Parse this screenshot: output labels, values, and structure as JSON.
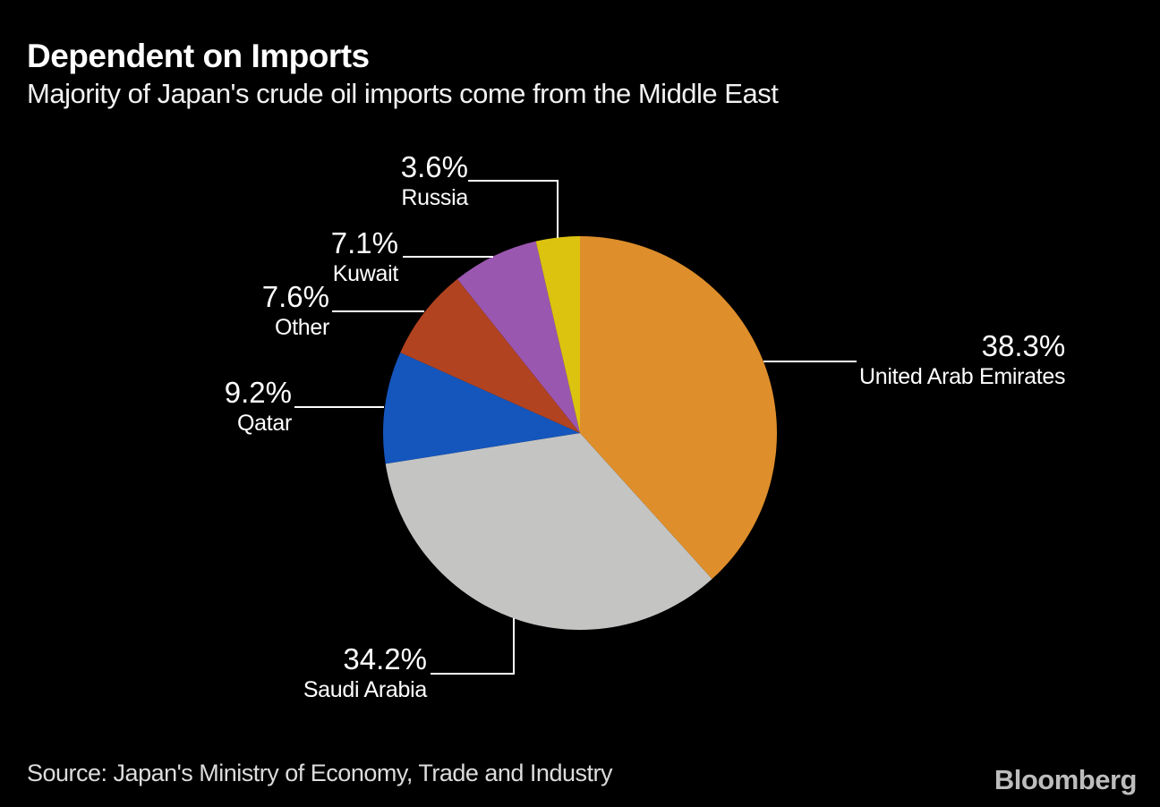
{
  "header": {
    "title": "Dependent on Imports",
    "subtitle": "Majority of Japan's crude oil imports come from the Middle East"
  },
  "footer": {
    "source": "Source: Japan's Ministry of Economy, Trade and Industry",
    "brand": "Bloomberg"
  },
  "chart_data": {
    "type": "pie",
    "title": "Dependent on Imports",
    "subtitle": "Majority of Japan's crude oil imports come from the Middle East",
    "start_angle_deg": 0,
    "direction": "clockwise",
    "background_color": "#000000",
    "label_text_color": "#ffffff",
    "slices": [
      {
        "label": "United Arab Emirates",
        "value": 38.3,
        "pct_label": "38.3%",
        "color": "#DE8E2B"
      },
      {
        "label": "Saudi Arabia",
        "value": 34.2,
        "pct_label": "34.2%",
        "color": "#C4C4C3"
      },
      {
        "label": "Qatar",
        "value": 9.2,
        "pct_label": "9.2%",
        "color": "#1556BD"
      },
      {
        "label": "Other",
        "value": 7.6,
        "pct_label": "7.6%",
        "color": "#B24320"
      },
      {
        "label": "Kuwait",
        "value": 7.1,
        "pct_label": "7.1%",
        "color": "#9A57B0"
      },
      {
        "label": "Russia",
        "value": 3.6,
        "pct_label": "3.6%",
        "color": "#DCC310"
      }
    ]
  }
}
